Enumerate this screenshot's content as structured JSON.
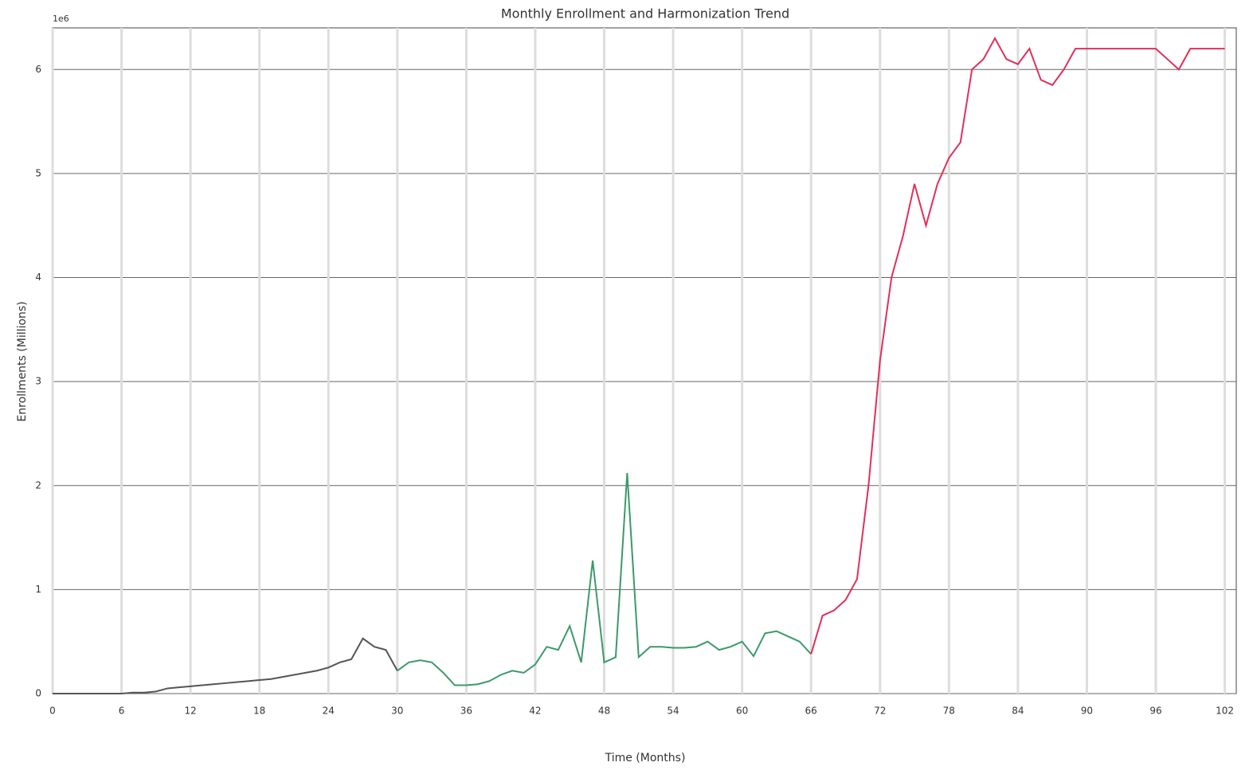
{
  "chart_data": {
    "type": "line",
    "title": "Monthly Enrollment and Harmonization Trend",
    "x_label": "Time (Months)",
    "y_label": "Enrollments (Millions)",
    "y_offset_text": "1e6",
    "x": [
      0,
      1,
      2,
      3,
      4,
      5,
      6,
      7,
      8,
      9,
      10,
      11,
      12,
      13,
      14,
      15,
      16,
      17,
      18,
      19,
      20,
      21,
      22,
      23,
      24,
      25,
      26,
      27,
      28,
      29,
      30,
      31,
      32,
      33,
      34,
      35,
      36,
      37,
      38,
      39,
      40,
      41,
      42,
      43,
      44,
      45,
      46,
      47,
      48,
      49,
      50,
      51,
      52,
      53,
      54,
      55,
      56,
      57,
      58,
      59,
      60,
      61,
      62,
      63,
      64,
      65,
      66,
      67,
      68,
      69,
      70,
      71,
      72,
      73,
      74,
      75,
      76,
      77,
      78,
      79,
      80,
      81,
      82,
      83,
      84,
      85,
      86,
      87,
      88,
      89,
      90,
      91,
      92,
      93,
      94,
      95,
      96,
      97,
      98,
      99,
      100,
      101,
      102
    ],
    "series": [
      {
        "color": "#555555",
        "values": [
          0,
          0,
          0,
          0,
          0,
          0,
          0,
          0.01,
          0.01,
          0.02,
          0.05,
          0.06,
          0.07,
          0.08,
          0.09,
          0.1,
          0.11,
          0.12,
          0.13,
          0.14,
          0.16,
          0.18,
          0.2,
          0.22,
          0.25,
          0.3,
          0.33,
          0.53,
          0.45,
          0.42,
          0.22,
          null,
          null,
          null,
          null,
          null,
          null,
          null,
          null,
          null,
          null,
          null,
          null,
          null,
          null,
          null,
          null,
          null,
          null,
          null,
          null,
          null,
          null,
          null,
          null,
          null,
          null,
          null,
          null,
          null,
          null,
          null,
          null,
          null,
          null,
          null,
          null,
          null,
          null,
          null,
          null,
          null,
          null,
          null,
          null,
          null,
          null,
          null,
          null,
          null,
          null,
          null,
          null,
          null,
          null,
          null,
          null,
          null,
          null,
          null,
          null,
          null,
          null,
          null,
          null,
          null,
          null,
          null,
          null,
          null,
          null,
          null,
          null
        ]
      },
      {
        "color": "#3a9a6a",
        "values": [
          null,
          null,
          null,
          null,
          null,
          null,
          null,
          null,
          null,
          null,
          null,
          null,
          null,
          null,
          null,
          null,
          null,
          null,
          null,
          null,
          null,
          null,
          null,
          null,
          null,
          null,
          null,
          null,
          null,
          null,
          0.22,
          0.3,
          0.32,
          0.3,
          0.2,
          0.08,
          0.08,
          0.09,
          0.12,
          0.18,
          0.22,
          0.2,
          0.28,
          0.45,
          0.42,
          0.65,
          0.3,
          1.28,
          0.3,
          0.35,
          2.12,
          0.35,
          0.45,
          0.45,
          0.44,
          0.44,
          0.45,
          0.5,
          0.42,
          0.45,
          0.5,
          0.36,
          0.58,
          0.6,
          0.55,
          0.5,
          0.38,
          null,
          null,
          null,
          null,
          null,
          null,
          null,
          null,
          null,
          null,
          null,
          null,
          null,
          null,
          null,
          null,
          null,
          null,
          null,
          null,
          null,
          null,
          null,
          null,
          null,
          null,
          null,
          null,
          null,
          null,
          null,
          null,
          null,
          null,
          null,
          null
        ]
      },
      {
        "color": "#e0305a",
        "values": [
          null,
          null,
          null,
          null,
          null,
          null,
          null,
          null,
          null,
          null,
          null,
          null,
          null,
          null,
          null,
          null,
          null,
          null,
          null,
          null,
          null,
          null,
          null,
          null,
          null,
          null,
          null,
          null,
          null,
          null,
          null,
          null,
          null,
          null,
          null,
          null,
          null,
          null,
          null,
          null,
          null,
          null,
          null,
          null,
          null,
          null,
          null,
          null,
          null,
          null,
          null,
          null,
          null,
          null,
          null,
          null,
          null,
          null,
          null,
          null,
          null,
          null,
          null,
          null,
          null,
          null,
          0.38,
          0.75,
          0.8,
          0.9,
          1.1,
          2.0,
          3.2,
          4.0,
          4.4,
          4.9,
          4.5,
          4.9,
          5.15,
          5.3,
          6.0,
          6.1,
          6.3,
          6.1,
          6.05,
          6.2,
          5.9,
          5.85,
          6.0,
          6.2,
          6.2,
          6.2,
          6.2,
          6.2,
          6.2,
          6.2,
          6.2,
          6.1,
          6.0,
          6.2,
          6.2,
          6.2,
          6.2
        ]
      }
    ],
    "xlim": [
      0,
      103
    ],
    "ylim": [
      0,
      6.4
    ],
    "xticks": [
      0,
      6,
      12,
      18,
      24,
      30,
      36,
      42,
      48,
      54,
      60,
      66,
      72,
      78,
      84,
      90,
      96,
      102
    ],
    "yticks": [
      0,
      1,
      2,
      3,
      4,
      5,
      6
    ],
    "grid": true
  }
}
